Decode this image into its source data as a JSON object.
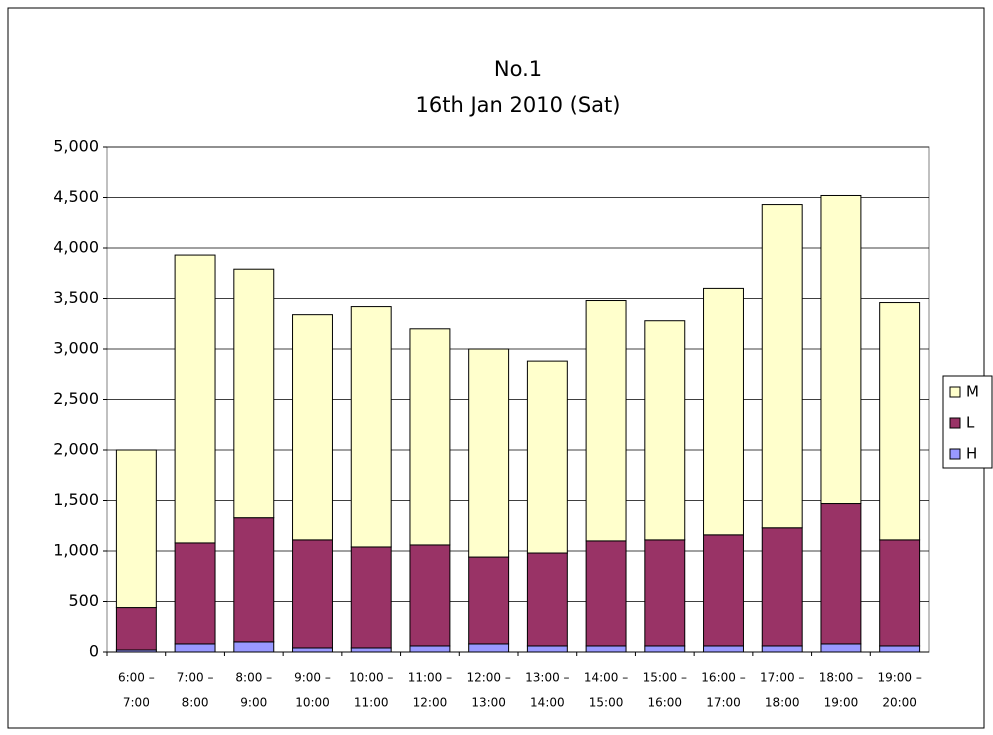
{
  "chart_data": {
    "type": "stacked_bar",
    "title": "No.1",
    "subtitle": "16th Jan 2010 (Sat)",
    "categories": [
      [
        "6:00 –",
        "7:00"
      ],
      [
        "7:00 –",
        "8:00"
      ],
      [
        "8:00 –",
        "9:00"
      ],
      [
        "9:00 –",
        "10:00"
      ],
      [
        "10:00 –",
        "11:00"
      ],
      [
        "11:00 –",
        "12:00"
      ],
      [
        "12:00 –",
        "13:00"
      ],
      [
        "13:00 –",
        "14:00"
      ],
      [
        "14:00 –",
        "15:00"
      ],
      [
        "15:00 –",
        "16:00"
      ],
      [
        "16:00 –",
        "17:00"
      ],
      [
        "17:00 –",
        "18:00"
      ],
      [
        "18:00 –",
        "19:00"
      ],
      [
        "19:00 –",
        "20:00"
      ]
    ],
    "series": [
      {
        "name": "H",
        "color": "#9999ff",
        "values": [
          20,
          80,
          100,
          40,
          40,
          60,
          80,
          60,
          60,
          60,
          60,
          60,
          80,
          60
        ]
      },
      {
        "name": "L",
        "color": "#993366",
        "values": [
          420,
          1000,
          1230,
          1070,
          1000,
          1000,
          860,
          920,
          1040,
          1050,
          1100,
          1170,
          1390,
          1050
        ]
      },
      {
        "name": "M",
        "color": "#ffffcc",
        "values": [
          1560,
          2850,
          2460,
          2230,
          2380,
          2140,
          2060,
          1900,
          2380,
          2170,
          2440,
          3200,
          3050,
          2350
        ]
      }
    ],
    "ylim": [
      0,
      5000
    ],
    "yticks": [
      0,
      500,
      {
        "value": 1000,
        "label": "1,000"
      },
      {
        "value": 1500,
        "label": "1,500"
      },
      {
        "value": 2000,
        "label": "2,000"
      },
      {
        "value": 2500,
        "label": "2,500"
      },
      {
        "value": 3000,
        "label": "3,000"
      },
      {
        "value": 3500,
        "label": "3,500"
      },
      {
        "value": 4000,
        "label": "4,000"
      },
      {
        "value": 4500,
        "label": "4,500"
      },
      {
        "value": 5000,
        "label": "5,000"
      }
    ],
    "grid": true,
    "legend": "right"
  }
}
